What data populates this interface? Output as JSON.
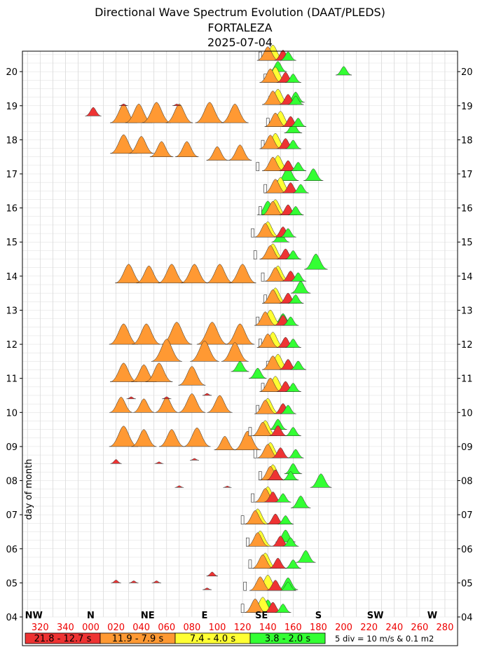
{
  "title_lines": [
    "Directional Wave Spectrum Evolution (DAAT/PLEDS)",
    "FORTALEZA",
    "2025-07-04"
  ],
  "chart_data": {
    "type": "spectrum-evolution",
    "ylabel": "day of month",
    "y_ticks": [
      "04",
      "05",
      "06",
      "07",
      "08",
      "09",
      "10",
      "11",
      "12",
      "13",
      "14",
      "15",
      "16",
      "17",
      "18",
      "19",
      "20"
    ],
    "ylim": [
      4,
      20.6
    ],
    "direction_ticks": [
      "320",
      "340",
      "000",
      "020",
      "040",
      "060",
      "080",
      "100",
      "120",
      "140",
      "160",
      "180",
      "200",
      "220",
      "240",
      "260",
      "280"
    ],
    "direction_tick_values": [
      320,
      340,
      360,
      380,
      400,
      420,
      440,
      460,
      480,
      500,
      520,
      540,
      560,
      580,
      600,
      620,
      640
    ],
    "xlim": [
      306,
      650
    ],
    "compass_labels": [
      {
        "label": "NW",
        "dir": 315
      },
      {
        "label": "N",
        "dir": 360
      },
      {
        "label": "NE",
        "dir": 405
      },
      {
        "label": "E",
        "dir": 450
      },
      {
        "label": "SE",
        "dir": 495
      },
      {
        "label": "S",
        "dir": 540
      },
      {
        "label": "SW",
        "dir": 585
      },
      {
        "label": "W",
        "dir": 630
      }
    ],
    "legend": [
      {
        "label": "21.8 - 12.7 s",
        "color": "#ee3333"
      },
      {
        "label": "11.9 - 7.9 s",
        "color": "#ff9933"
      },
      {
        "label": "7.4 - 4.0 s",
        "color": "#ffff33"
      },
      {
        "label": "3.8 - 2.0 s",
        "color": "#33ff33"
      }
    ],
    "scale_note": "5 div = 10 m/s & 0.1 m2",
    "band_colors": {
      "red": "#ee3333",
      "orange": "#ff9933",
      "yellow": "#ffff33",
      "green": "#33ff33",
      "wind": "#ffffff"
    },
    "peaks": [
      {
        "band": "orange",
        "day": 18.5,
        "dir": 386,
        "h": 0.55
      },
      {
        "band": "orange",
        "day": 18.5,
        "dir": 398,
        "h": 0.55
      },
      {
        "band": "orange",
        "day": 18.5,
        "dir": 412,
        "h": 0.6
      },
      {
        "band": "orange",
        "day": 18.5,
        "dir": 430,
        "h": 0.55
      },
      {
        "band": "orange",
        "day": 18.5,
        "dir": 454,
        "h": 0.6
      },
      {
        "band": "orange",
        "day": 18.5,
        "dir": 474,
        "h": 0.55
      },
      {
        "band": "orange",
        "day": 17.6,
        "dir": 386,
        "h": 0.55
      },
      {
        "band": "orange",
        "day": 17.6,
        "dir": 400,
        "h": 0.5
      },
      {
        "band": "orange",
        "day": 17.5,
        "dir": 416,
        "h": 0.45
      },
      {
        "band": "orange",
        "day": 17.5,
        "dir": 436,
        "h": 0.45
      },
      {
        "band": "orange",
        "day": 17.4,
        "dir": 460,
        "h": 0.4
      },
      {
        "band": "orange",
        "day": 17.4,
        "dir": 478,
        "h": 0.45
      },
      {
        "band": "orange",
        "day": 13.8,
        "dir": 390,
        "h": 0.55
      },
      {
        "band": "orange",
        "day": 13.8,
        "dir": 406,
        "h": 0.5
      },
      {
        "band": "orange",
        "day": 13.8,
        "dir": 424,
        "h": 0.55
      },
      {
        "band": "orange",
        "day": 13.8,
        "dir": 442,
        "h": 0.55
      },
      {
        "band": "orange",
        "day": 13.8,
        "dir": 462,
        "h": 0.55
      },
      {
        "band": "orange",
        "day": 13.8,
        "dir": 480,
        "h": 0.55
      },
      {
        "band": "orange",
        "day": 12.0,
        "dir": 386,
        "h": 0.6
      },
      {
        "band": "orange",
        "day": 12.0,
        "dir": 404,
        "h": 0.6
      },
      {
        "band": "orange",
        "day": 12.0,
        "dir": 428,
        "h": 0.65
      },
      {
        "band": "orange",
        "day": 12.0,
        "dir": 456,
        "h": 0.65
      },
      {
        "band": "orange",
        "day": 12.0,
        "dir": 478,
        "h": 0.6
      },
      {
        "band": "orange",
        "day": 11.5,
        "dir": 420,
        "h": 0.65
      },
      {
        "band": "orange",
        "day": 11.5,
        "dir": 450,
        "h": 0.6
      },
      {
        "band": "orange",
        "day": 11.5,
        "dir": 474,
        "h": 0.55
      },
      {
        "band": "orange",
        "day": 10.9,
        "dir": 386,
        "h": 0.55
      },
      {
        "band": "orange",
        "day": 10.9,
        "dir": 402,
        "h": 0.5
      },
      {
        "band": "orange",
        "day": 10.9,
        "dir": 414,
        "h": 0.55
      },
      {
        "band": "orange",
        "day": 10.8,
        "dir": 440,
        "h": 0.55
      },
      {
        "band": "orange",
        "day": 10.0,
        "dir": 384,
        "h": 0.45
      },
      {
        "band": "orange",
        "day": 10.0,
        "dir": 402,
        "h": 0.4
      },
      {
        "band": "orange",
        "day": 10.0,
        "dir": 420,
        "h": 0.45
      },
      {
        "band": "orange",
        "day": 10.0,
        "dir": 440,
        "h": 0.55
      },
      {
        "band": "orange",
        "day": 10.0,
        "dir": 462,
        "h": 0.5
      },
      {
        "band": "orange",
        "day": 9.0,
        "dir": 386,
        "h": 0.6
      },
      {
        "band": "orange",
        "day": 9.0,
        "dir": 402,
        "h": 0.5
      },
      {
        "band": "orange",
        "day": 9.0,
        "dir": 424,
        "h": 0.5
      },
      {
        "band": "orange",
        "day": 9.0,
        "dir": 444,
        "h": 0.55
      },
      {
        "band": "orange",
        "day": 8.9,
        "dir": 466,
        "h": 0.4
      },
      {
        "band": "orange",
        "day": 8.9,
        "dir": 484,
        "h": 0.55
      },
      {
        "band": "red",
        "day": 18.7,
        "dir": 362,
        "h": 0.25
      },
      {
        "band": "red",
        "day": 19.0,
        "dir": 386,
        "h": 0.05
      },
      {
        "band": "red",
        "day": 19.0,
        "dir": 428,
        "h": 0.05
      },
      {
        "band": "red",
        "day": 8.5,
        "dir": 380,
        "h": 0.12
      },
      {
        "band": "red",
        "day": 8.5,
        "dir": 414,
        "h": 0.05
      },
      {
        "band": "red",
        "day": 8.6,
        "dir": 442,
        "h": 0.05
      },
      {
        "band": "red",
        "day": 7.8,
        "dir": 430,
        "h": 0.05
      },
      {
        "band": "red",
        "day": 7.8,
        "dir": 468,
        "h": 0.04
      },
      {
        "band": "red",
        "day": 10.4,
        "dir": 392,
        "h": 0.06
      },
      {
        "band": "red",
        "day": 10.4,
        "dir": 420,
        "h": 0.06
      },
      {
        "band": "red",
        "day": 10.5,
        "dir": 452,
        "h": 0.06
      },
      {
        "band": "red",
        "day": 5.0,
        "dir": 380,
        "h": 0.08
      },
      {
        "band": "red",
        "day": 5.0,
        "dir": 394,
        "h": 0.06
      },
      {
        "band": "red",
        "day": 5.0,
        "dir": 412,
        "h": 0.06
      },
      {
        "band": "red",
        "day": 5.2,
        "dir": 456,
        "h": 0.12
      },
      {
        "band": "red",
        "day": 4.8,
        "dir": 452,
        "h": 0.05
      },
      {
        "band": "green",
        "day": 20.0,
        "dir": 508,
        "h": 0.3
      },
      {
        "band": "green",
        "day": 19.9,
        "dir": 560,
        "h": 0.25
      },
      {
        "band": "green",
        "day": 19.1,
        "dir": 522,
        "h": 0.3
      },
      {
        "band": "green",
        "day": 18.2,
        "dir": 520,
        "h": 0.3
      },
      {
        "band": "green",
        "day": 16.8,
        "dir": 516,
        "h": 0.4
      },
      {
        "band": "green",
        "day": 16.8,
        "dir": 536,
        "h": 0.35
      },
      {
        "band": "green",
        "day": 15.8,
        "dir": 500,
        "h": 0.4
      },
      {
        "band": "green",
        "day": 15.0,
        "dir": 510,
        "h": 0.3
      },
      {
        "band": "green",
        "day": 14.2,
        "dir": 538,
        "h": 0.45
      },
      {
        "band": "green",
        "day": 13.5,
        "dir": 526,
        "h": 0.35
      },
      {
        "band": "green",
        "day": 12.6,
        "dir": 512,
        "h": 0.3
      },
      {
        "band": "green",
        "day": 11.2,
        "dir": 478,
        "h": 0.3
      },
      {
        "band": "green",
        "day": 11.0,
        "dir": 492,
        "h": 0.3
      },
      {
        "band": "green",
        "day": 9.5,
        "dir": 508,
        "h": 0.3
      },
      {
        "band": "green",
        "day": 8.2,
        "dir": 520,
        "h": 0.3
      },
      {
        "band": "green",
        "day": 7.8,
        "dir": 542,
        "h": 0.4
      },
      {
        "band": "green",
        "day": 7.2,
        "dir": 526,
        "h": 0.35
      },
      {
        "band": "green",
        "day": 6.2,
        "dir": 514,
        "h": 0.35
      },
      {
        "band": "green",
        "day": 5.6,
        "dir": 530,
        "h": 0.35
      },
      {
        "band": "green",
        "day": 4.8,
        "dir": 516,
        "h": 0.35
      },
      {
        "band": "green",
        "day": 4.2,
        "dir": 500,
        "h": 0.3
      }
    ],
    "tracks": [
      {
        "band": "wind",
        "dir": [
          480,
          482,
          486,
          484,
          480,
          488,
          494,
          490,
          486,
          492,
          496,
          500,
          494,
          492,
          498,
          496,
          490,
          488,
          494,
          498,
          492,
          496,
          500,
          502,
          498,
          494
        ],
        "h": 0.1
      },
      {
        "band": "yellow",
        "dir": [
          496,
          500,
          498,
          494,
          492,
          500,
          504,
          502,
          498,
          500,
          506,
          508,
          504,
          502,
          506,
          508,
          504,
          500,
          506,
          510,
          508,
          506,
          510,
          508,
          506,
          504
        ],
        "h": 0.45
      },
      {
        "band": "orange",
        "dir": [
          490,
          494,
          496,
          492,
          490,
          498,
          502,
          500,
          496,
          498,
          502,
          504,
          500,
          498,
          504,
          506,
          502,
          498,
          504,
          506,
          504,
          502,
          506,
          504,
          502,
          500
        ],
        "h": 0.4
      },
      {
        "band": "red",
        "dir": [
          504,
          506,
          508,
          510,
          506,
          504,
          506,
          510,
          508,
          512,
          514,
          516,
          514,
          512,
          516,
          518,
          514,
          512,
          516,
          518,
          516,
          514,
          518,
          516,
          514,
          512
        ],
        "h": 0.3
      },
      {
        "band": "green",
        "dir": [
          512,
          516,
          520,
          518,
          514,
          512,
          518,
          522,
          520,
          516,
          520,
          524,
          520,
          518,
          522,
          524,
          520,
          516,
          522,
          526,
          524,
          520,
          524,
          522,
          520,
          516
        ],
        "h": 0.25
      }
    ]
  }
}
